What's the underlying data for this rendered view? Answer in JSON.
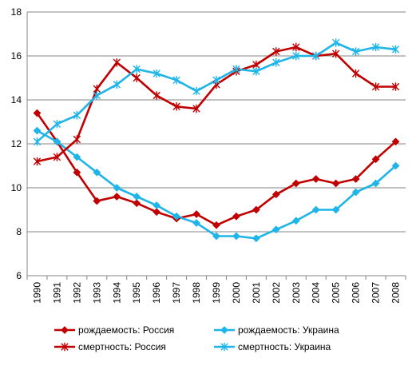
{
  "chart_data": {
    "type": "line",
    "title": "",
    "xlabel": "",
    "ylabel": "",
    "ylim": [
      6,
      18
    ],
    "yticks": [
      6,
      8,
      10,
      12,
      14,
      16,
      18
    ],
    "grid": "horizontal",
    "legend_position": "bottom",
    "x": [
      "1990",
      "1991",
      "1992",
      "1993",
      "1994",
      "1995",
      "1996",
      "1997",
      "1998",
      "1999",
      "2000",
      "2001",
      "2002",
      "2003",
      "2004",
      "2005",
      "2006",
      "2007",
      "2008"
    ],
    "series": [
      {
        "name": "рождаемость: Россия",
        "color": "#C00000",
        "marker": "diamond",
        "values": [
          13.4,
          12.1,
          10.7,
          9.4,
          9.6,
          9.3,
          8.9,
          8.6,
          8.8,
          8.3,
          8.7,
          9.0,
          9.7,
          10.2,
          10.4,
          10.2,
          10.4,
          11.3,
          12.1
        ]
      },
      {
        "name": "рождаемость: Украина",
        "color": "#1FB5E8",
        "marker": "diamond",
        "values": [
          12.6,
          12.1,
          11.4,
          10.7,
          10.0,
          9.6,
          9.2,
          8.7,
          8.4,
          7.8,
          7.8,
          7.7,
          8.1,
          8.5,
          9.0,
          9.0,
          9.8,
          10.2,
          11.0
        ]
      },
      {
        "name": "смертность: Россия",
        "color": "#C00000",
        "marker": "star",
        "values": [
          11.2,
          11.4,
          12.2,
          14.5,
          15.7,
          15.0,
          14.2,
          13.7,
          13.6,
          14.7,
          15.3,
          15.6,
          16.2,
          16.4,
          16.0,
          16.1,
          15.2,
          14.6,
          14.6
        ]
      },
      {
        "name": "смертность: Украина",
        "color": "#1FB5E8",
        "marker": "star",
        "values": [
          12.1,
          12.9,
          13.3,
          14.2,
          14.7,
          15.4,
          15.2,
          14.9,
          14.4,
          14.9,
          15.4,
          15.3,
          15.7,
          16.0,
          16.0,
          16.6,
          16.2,
          16.4,
          16.3
        ]
      }
    ]
  }
}
